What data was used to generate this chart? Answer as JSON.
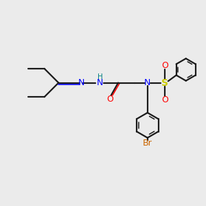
{
  "bg_color": "#ebebeb",
  "bond_color": "#1a1a1a",
  "N_color": "#0000ff",
  "NH_color": "#008080",
  "O_color": "#ff0000",
  "S_color": "#cccc00",
  "Br_color": "#cc6600",
  "figsize": [
    3.0,
    3.0
  ],
  "dpi": 100,
  "xlim": [
    0,
    10
  ],
  "ylim": [
    0,
    10
  ]
}
